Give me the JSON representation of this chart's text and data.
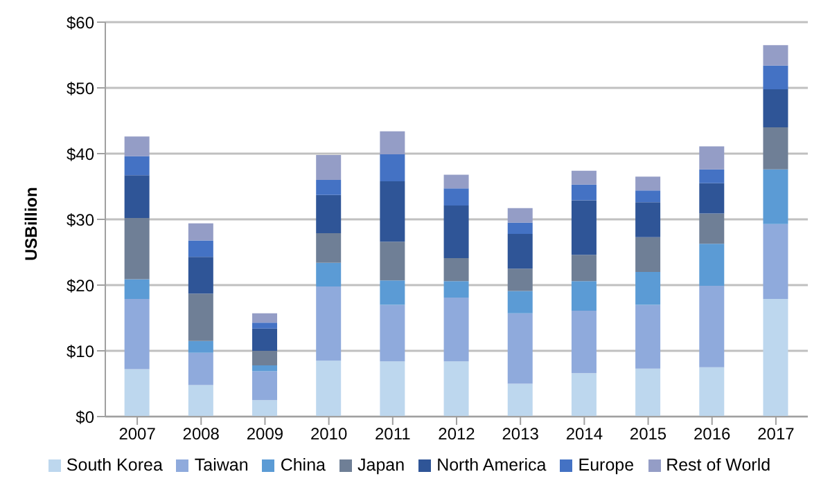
{
  "chart_data": {
    "type": "bar",
    "stacked": true,
    "ylabel": "USBillion",
    "categories": [
      "2007",
      "2008",
      "2009",
      "2010",
      "2011",
      "2012",
      "2013",
      "2014",
      "2015",
      "2016",
      "2017"
    ],
    "series": [
      {
        "name": "South Korea",
        "color": "#bdd7ee",
        "values": [
          7.2,
          4.8,
          2.5,
          8.5,
          8.4,
          8.4,
          5.0,
          6.6,
          7.3,
          7.5,
          17.9
        ]
      },
      {
        "name": "Taiwan",
        "color": "#8faadc",
        "values": [
          10.7,
          4.9,
          4.4,
          11.3,
          8.6,
          9.7,
          10.7,
          9.5,
          9.7,
          12.4,
          11.4
        ]
      },
      {
        "name": "China",
        "color": "#5b9bd5",
        "values": [
          3.0,
          1.8,
          0.9,
          3.6,
          3.7,
          2.5,
          3.4,
          4.5,
          5.0,
          6.4,
          8.3
        ]
      },
      {
        "name": "Japan",
        "color": "#6f7f96",
        "values": [
          9.3,
          7.2,
          2.2,
          4.5,
          5.9,
          3.5,
          3.4,
          4.0,
          5.3,
          4.6,
          6.4
        ]
      },
      {
        "name": "North America",
        "color": "#2f5597",
        "values": [
          6.5,
          5.6,
          3.4,
          5.8,
          9.2,
          8.0,
          5.3,
          8.3,
          5.3,
          4.6,
          5.8
        ]
      },
      {
        "name": "Europe",
        "color": "#4472c4",
        "values": [
          2.9,
          2.5,
          0.9,
          2.3,
          4.1,
          2.6,
          1.7,
          2.4,
          1.8,
          2.1,
          3.6
        ]
      },
      {
        "name": "Rest of World",
        "color": "#949dc6",
        "values": [
          3.0,
          2.6,
          1.4,
          3.8,
          3.5,
          2.1,
          2.2,
          2.1,
          2.1,
          3.5,
          3.1
        ]
      }
    ],
    "ylim": [
      0,
      60
    ],
    "yticks": [
      {
        "value": 0,
        "label": "$0"
      },
      {
        "value": 10,
        "label": "$10"
      },
      {
        "value": 20,
        "label": "$20"
      },
      {
        "value": 30,
        "label": "$30"
      },
      {
        "value": 40,
        "label": "$40"
      },
      {
        "value": 50,
        "label": "$50"
      },
      {
        "value": 60,
        "label": "$60"
      }
    ],
    "grid": "y",
    "legend": "bottom"
  }
}
